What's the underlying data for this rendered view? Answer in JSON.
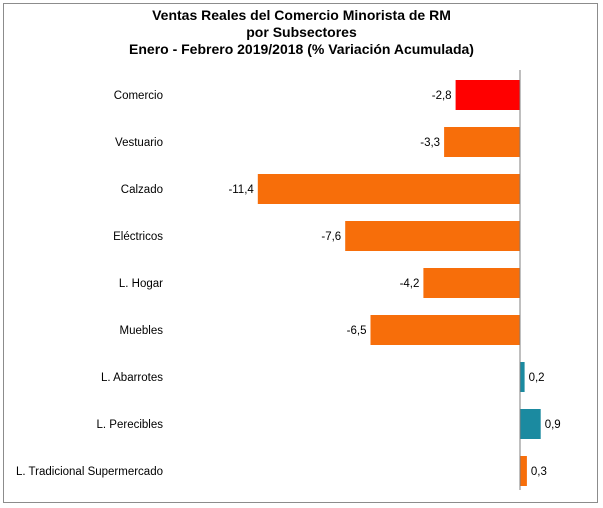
{
  "chart_data": {
    "type": "bar",
    "orientation": "horizontal",
    "title": [
      "Ventas Reales del Comercio Minorista de RM",
      "por Subsectores",
      "Enero - Febrero 2019/2018 (% Variación Acumulada)"
    ],
    "categories": [
      "Comercio",
      "Vestuario",
      "Calzado",
      "Eléctricos",
      "L. Hogar",
      "Muebles",
      "L. Abarrotes",
      "L. Perecibles",
      "L. Tradicional Supermercado"
    ],
    "values": [
      -2.8,
      -3.3,
      -11.4,
      -7.6,
      -4.2,
      -6.5,
      0.2,
      0.9,
      0.3
    ],
    "value_labels": [
      "-2,8",
      "-3,3",
      "-11,4",
      "-7,6",
      "-4,2",
      "-6,5",
      "0,2",
      "0,9",
      "0,3"
    ],
    "bar_colors": [
      "#ff0000",
      "#f76e0a",
      "#f76e0a",
      "#f76e0a",
      "#f76e0a",
      "#f76e0a",
      "#1b8aa0",
      "#1b8aa0",
      "#f76e0a"
    ],
    "xlim": [
      -11.4,
      0.9
    ],
    "grid": false,
    "legend": "none"
  }
}
